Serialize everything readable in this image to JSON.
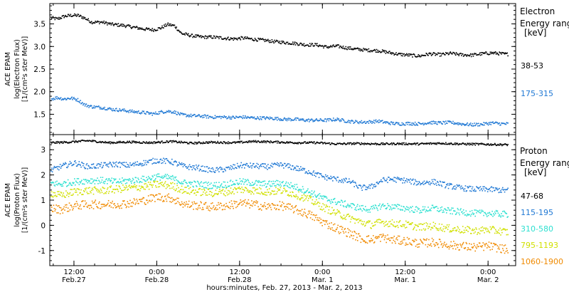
{
  "chart_data": {
    "type": "scatter",
    "x_axis": {
      "label": "hours:minutes, Feb. 27, 2013 - Mar.  2, 2013",
      "unit": "hours since 00:00 Feb 26, 2013",
      "range": [
        32.5,
        100
      ],
      "ticks": [
        {
          "x": 36,
          "time": "12:00",
          "date": "Feb.27"
        },
        {
          "x": 48,
          "time": "0:00",
          "date": "Feb.28"
        },
        {
          "x": 60,
          "time": "12:00",
          "date": "Feb.28"
        },
        {
          "x": 72,
          "time": "0:00",
          "date": "Mar.  1"
        },
        {
          "x": 84,
          "time": "12:00",
          "date": "Mar.  1"
        },
        {
          "x": 96,
          "time": "0:00",
          "date": "Mar.  2"
        }
      ]
    },
    "panels": [
      {
        "ylabel": [
          "ACE EPAM",
          "log(Electron Flux)",
          "[1/(cm²s ster MeV)]"
        ],
        "ylim": [
          1.05,
          3.95
        ],
        "yticks": [
          1.5,
          2.0,
          2.5,
          3.0,
          3.5
        ],
        "legend_title": [
          "Electron",
          "Energy range",
          "[keV]"
        ],
        "series": [
          {
            "name": "38-53",
            "color": "#000000",
            "x": [
              32.6,
              33.5,
              34.5,
              35.5,
              36.5,
              37.5,
              38.5,
              40,
              41.5,
              43,
              44.5,
              46,
              47.5,
              48.5,
              49.5,
              50.5,
              51.5,
              53,
              54.5,
              56,
              57.5,
              59,
              60.5,
              62,
              63.5,
              65,
              66.5,
              68,
              69.5,
              71,
              72.5,
              74,
              75.5,
              77,
              78.5,
              80,
              81.5,
              83,
              84.5,
              86,
              87.5,
              89,
              90.5,
              92,
              93.5,
              95,
              96.5,
              98,
              98.8
            ],
            "y": [
              3.65,
              3.62,
              3.68,
              3.7,
              3.7,
              3.64,
              3.55,
              3.55,
              3.5,
              3.48,
              3.44,
              3.4,
              3.38,
              3.42,
              3.5,
              3.47,
              3.3,
              3.25,
              3.22,
              3.22,
              3.2,
              3.18,
              3.2,
              3.17,
              3.15,
              3.12,
              3.1,
              3.08,
              3.05,
              3.05,
              3.0,
              3.02,
              2.98,
              2.95,
              2.93,
              2.92,
              2.88,
              2.84,
              2.82,
              2.8,
              2.85,
              2.83,
              2.86,
              2.83,
              2.82,
              2.85,
              2.87,
              2.85,
              2.84
            ]
          },
          {
            "name": "175-315",
            "color": "#1f78d4",
            "x": [
              32.6,
              33.5,
              34.5,
              35.5,
              36.5,
              37.5,
              38.5,
              40,
              41.5,
              43,
              44.5,
              46,
              47.5,
              48.5,
              49.5,
              50.5,
              51.5,
              53,
              54.5,
              56,
              57.5,
              59,
              60.5,
              62,
              63.5,
              65,
              66.5,
              68,
              69.5,
              71,
              72.5,
              74,
              75.5,
              77,
              78.5,
              80,
              81.5,
              83,
              84.5,
              86,
              87.5,
              89,
              90.5,
              92,
              93.5,
              95,
              96.5,
              98,
              98.8
            ],
            "y": [
              1.85,
              1.88,
              1.85,
              1.87,
              1.83,
              1.72,
              1.68,
              1.66,
              1.62,
              1.6,
              1.57,
              1.55,
              1.52,
              1.56,
              1.58,
              1.56,
              1.5,
              1.48,
              1.47,
              1.45,
              1.45,
              1.44,
              1.45,
              1.43,
              1.43,
              1.42,
              1.4,
              1.4,
              1.38,
              1.38,
              1.38,
              1.4,
              1.36,
              1.34,
              1.34,
              1.36,
              1.32,
              1.3,
              1.31,
              1.3,
              1.33,
              1.32,
              1.33,
              1.3,
              1.28,
              1.29,
              1.32,
              1.3,
              1.3
            ]
          }
        ]
      },
      {
        "ylabel": [
          "ACE EPAM",
          "log(Proton Flux)",
          "[1/(cm²s ster MeV)]"
        ],
        "ylim": [
          -1.6,
          3.6
        ],
        "yticks": [
          -1,
          0,
          1,
          2,
          3
        ],
        "legend_title": [
          "Proton",
          "Energy range",
          "[keV]"
        ],
        "series": [
          {
            "name": "47-68",
            "color": "#000000",
            "x": [
              32.6,
              35,
              38,
              41,
              44,
              47,
              50,
              53,
              56,
              59,
              62,
              65,
              68,
              71,
              74,
              77,
              80,
              83,
              86,
              89,
              92,
              95,
              98.8
            ],
            "y": [
              3.3,
              3.32,
              3.38,
              3.3,
              3.33,
              3.3,
              3.35,
              3.28,
              3.32,
              3.3,
              3.35,
              3.33,
              3.3,
              3.3,
              3.25,
              3.27,
              3.25,
              3.26,
              3.25,
              3.28,
              3.25,
              3.24,
              3.22
            ]
          },
          {
            "name": "115-195",
            "color": "#1f78d4",
            "x": [
              32.6,
              34,
              36,
              38,
              40,
              42,
              44,
              46,
              48,
              50,
              52,
              54,
              56,
              58,
              60,
              62,
              64,
              66,
              68,
              70,
              72,
              74,
              76,
              77.5,
              79,
              80.5,
              82,
              84,
              86,
              88,
              90,
              92,
              94,
              96,
              98.8
            ],
            "y": [
              2.2,
              2.35,
              2.5,
              2.35,
              2.4,
              2.45,
              2.4,
              2.5,
              2.6,
              2.55,
              2.35,
              2.3,
              2.2,
              2.25,
              2.4,
              2.38,
              2.35,
              2.42,
              2.3,
              2.15,
              1.95,
              1.85,
              1.75,
              1.5,
              1.55,
              1.8,
              1.85,
              1.8,
              1.7,
              1.75,
              1.6,
              1.5,
              1.45,
              1.45,
              1.4
            ]
          },
          {
            "name": "310-580",
            "color": "#2de0d0",
            "x": [
              32.6,
              34,
              36,
              38,
              40,
              42,
              44,
              46,
              48,
              50,
              52,
              54,
              56,
              58,
              60,
              62,
              64,
              66,
              68,
              70,
              72,
              74,
              76,
              77.5,
              79,
              80.5,
              82,
              84,
              86,
              88,
              90,
              92,
              94,
              96,
              98.8
            ],
            "y": [
              1.7,
              1.65,
              1.75,
              1.8,
              1.8,
              1.75,
              1.8,
              1.85,
              1.95,
              1.9,
              1.7,
              1.65,
              1.6,
              1.65,
              1.75,
              1.7,
              1.65,
              1.7,
              1.55,
              1.35,
              1.1,
              0.95,
              0.8,
              0.7,
              0.65,
              0.8,
              0.75,
              0.7,
              0.62,
              0.7,
              0.6,
              0.55,
              0.5,
              0.5,
              0.45
            ]
          },
          {
            "name": "795-1193",
            "color": "#d0e000",
            "x": [
              32.6,
              34,
              36,
              38,
              40,
              42,
              44,
              46,
              48,
              50,
              52,
              54,
              56,
              58,
              60,
              62,
              64,
              66,
              68,
              70,
              72,
              74,
              76,
              77.5,
              79,
              80.5,
              82,
              84,
              86,
              88,
              90,
              92,
              94,
              96,
              98.8
            ],
            "y": [
              1.3,
              1.2,
              1.35,
              1.4,
              1.4,
              1.45,
              1.5,
              1.55,
              1.65,
              1.6,
              1.4,
              1.35,
              1.3,
              1.35,
              1.45,
              1.4,
              1.35,
              1.4,
              1.25,
              1.05,
              0.75,
              0.5,
              0.3,
              0.15,
              0.05,
              0.15,
              0.1,
              0.05,
              -0.05,
              0.0,
              -0.1,
              -0.15,
              -0.2,
              -0.15,
              -0.25
            ]
          },
          {
            "name": "1060-1900",
            "color": "#f08a00",
            "x": [
              32.6,
              34,
              36,
              38,
              40,
              42,
              44,
              46,
              48,
              50,
              52,
              54,
              56,
              58,
              60,
              62,
              64,
              66,
              68,
              70,
              72,
              74,
              76,
              77.5,
              79,
              80.5,
              82,
              84,
              86,
              88,
              90,
              92,
              94,
              96,
              98.8
            ],
            "y": [
              0.7,
              0.65,
              0.8,
              0.85,
              0.85,
              0.85,
              0.9,
              1.0,
              1.15,
              1.1,
              0.85,
              0.8,
              0.75,
              0.8,
              0.9,
              0.85,
              0.75,
              0.8,
              0.65,
              0.45,
              0.15,
              -0.1,
              -0.3,
              -0.5,
              -0.55,
              -0.45,
              -0.55,
              -0.6,
              -0.7,
              -0.65,
              -0.75,
              -0.8,
              -0.85,
              -0.8,
              -0.95
            ]
          }
        ]
      }
    ]
  }
}
